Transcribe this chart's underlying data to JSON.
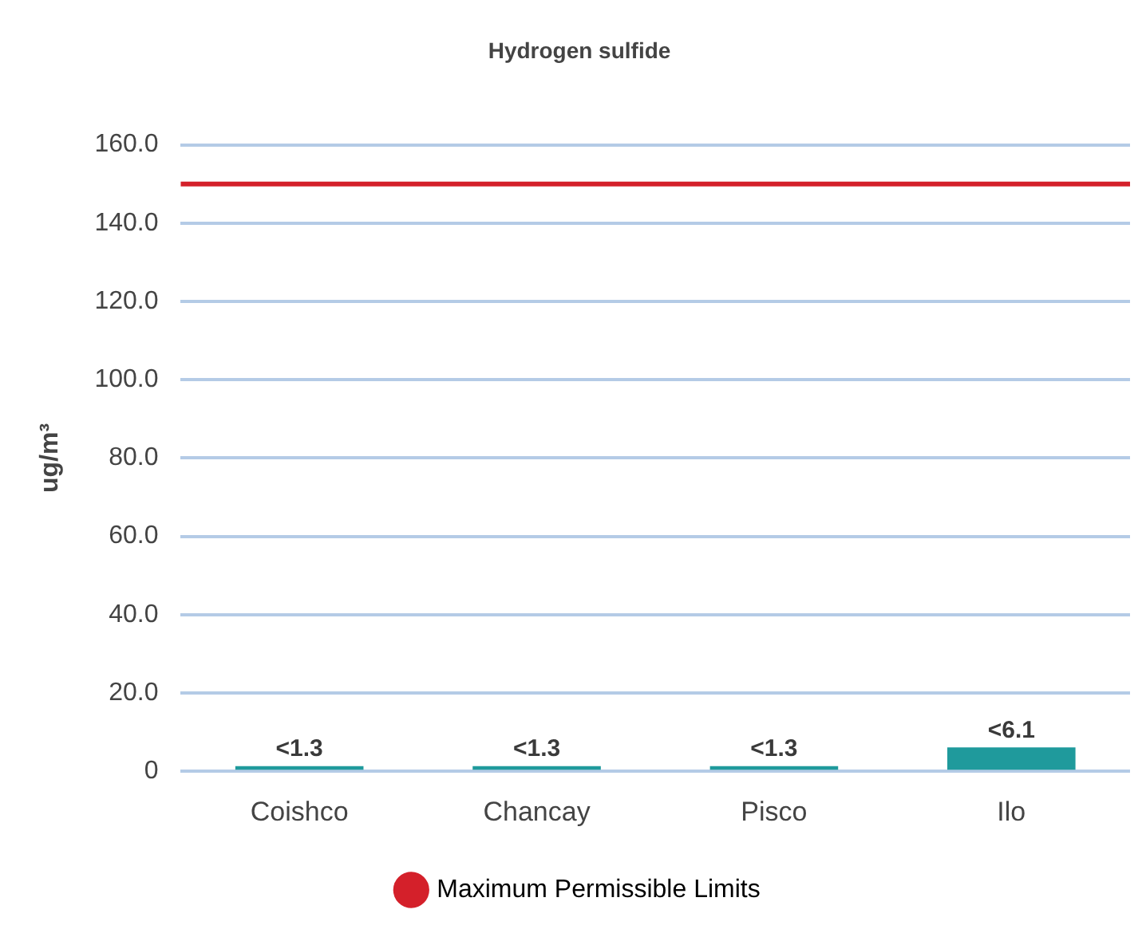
{
  "chart_data": {
    "type": "bar",
    "title": "Hydrogen sulfide",
    "ylabel": "ug/m³",
    "categories": [
      "Coishco",
      "Chancay",
      "Pisco",
      "Ilo"
    ],
    "series": [
      {
        "color": "#1f9a9c",
        "values": [
          1.3,
          1.3,
          1.3,
          6.1
        ],
        "value_labels": [
          "<1.3",
          "<1.3",
          "<1.3",
          "<6.1"
        ]
      }
    ],
    "ylim": [
      0,
      160
    ],
    "yticks": [
      {
        "value": 0,
        "label": "0"
      },
      {
        "value": 20,
        "label": "20.0"
      },
      {
        "value": 40,
        "label": "40.0"
      },
      {
        "value": 60,
        "label": "60.0"
      },
      {
        "value": 80,
        "label": "80.0"
      },
      {
        "value": 100,
        "label": "100.0"
      },
      {
        "value": 120,
        "label": "120.0"
      },
      {
        "value": 140,
        "label": "140.0"
      },
      {
        "value": 160,
        "label": "160.0"
      }
    ],
    "ref_lines": [
      {
        "axis": "y",
        "value": 150,
        "label": "Maximum Permissible Limits",
        "color": "#d4202a"
      }
    ],
    "grid": "y",
    "legend": "bottom"
  }
}
